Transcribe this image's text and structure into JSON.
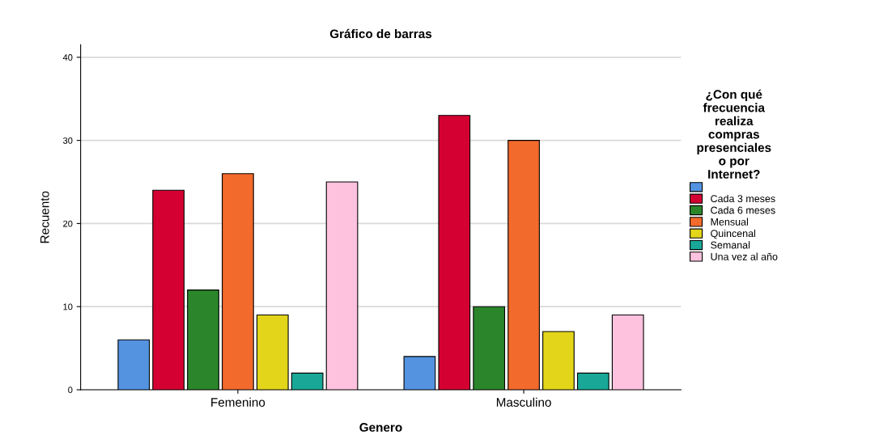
{
  "chart_data": {
    "type": "bar",
    "title": "Gráfico de barras",
    "xlabel": "Genero",
    "ylabel": "Recuento",
    "legend_title": "¿Con qué\nfrecuencia\nrealiza\ncompras\npresenciales\no por\nInternet?",
    "categories": [
      "Femenino",
      "Masculino"
    ],
    "series": [
      {
        "color": "#5393e0",
        "values": [
          6,
          4
        ]
      },
      {
        "name": "Cada 3 meses",
        "color": "#d50032",
        "values": [
          24,
          33
        ]
      },
      {
        "name": "Cada 6 meses",
        "color": "#2b862b",
        "values": [
          12,
          10
        ]
      },
      {
        "name": "Mensual",
        "color": "#f26a2c",
        "values": [
          26,
          30
        ]
      },
      {
        "name": "Quincenal",
        "color": "#e3d51a",
        "values": [
          9,
          7
        ]
      },
      {
        "name": "Semanal",
        "color": "#19a898",
        "values": [
          2,
          2
        ]
      },
      {
        "name": "Una vez al año",
        "color": "#ffc2de",
        "values": [
          25,
          9
        ]
      }
    ],
    "ylim": [
      0,
      41.5
    ],
    "yticks": [
      0,
      10,
      20,
      30,
      40
    ],
    "grid": "y",
    "legend": "right"
  }
}
